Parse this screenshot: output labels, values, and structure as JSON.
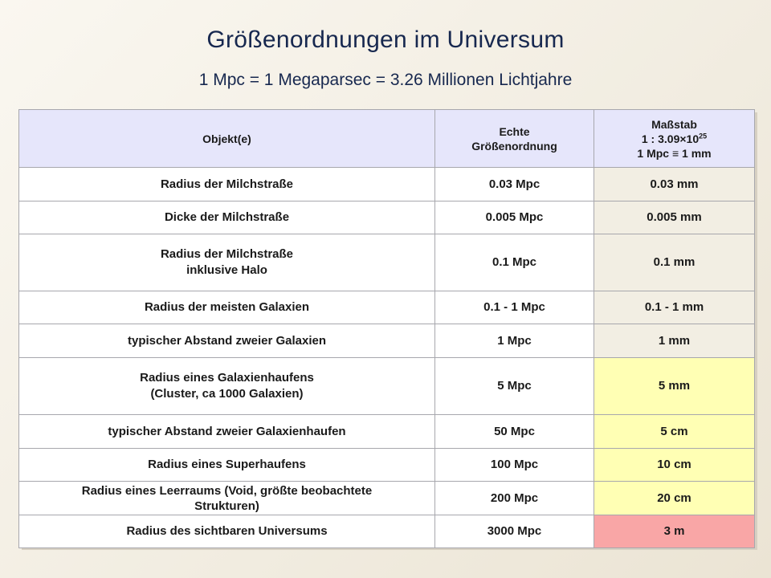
{
  "title": "Größenordnungen im Universum",
  "subtitle": "1 Mpc = 1 Megaparsec = 3.26 Millionen Lichtjahre",
  "table": {
    "headers": {
      "object": "Objekt(e)",
      "size_line1": "Echte",
      "size_line2": "Größenordnung",
      "scale_line1": "Maßstab",
      "scale_line2_prefix": "1 : 3.09×10",
      "scale_line2_exp": "25",
      "scale_line3": "1 Mpc ≡ 1 mm"
    },
    "rows": [
      {
        "object": "Radius der Milchstraße",
        "size": "0.03 Mpc",
        "scale": "0.03 mm"
      },
      {
        "object": "Dicke der Milchstraße",
        "size": "0.005 Mpc",
        "scale": "0.005 mm"
      },
      {
        "object": "Radius der Milchstraße",
        "object2": "inklusive Halo",
        "size": "0.1 Mpc",
        "scale": "0.1 mm"
      },
      {
        "object": "Radius der meisten Galaxien",
        "size": "0.1 - 1 Mpc",
        "scale": "0.1 - 1 mm"
      },
      {
        "object": "typischer Abstand zweier Galaxien",
        "size": "1 Mpc",
        "scale": "1 mm"
      },
      {
        "object": "Radius eines Galaxienhaufens",
        "object2": "(Cluster, ca 1000 Galaxien)",
        "size": "5 Mpc",
        "scale": "5 mm"
      },
      {
        "object": "typischer Abstand zweier Galaxienhaufen",
        "size": "50 Mpc",
        "scale": "5 cm"
      },
      {
        "object": "Radius eines Superhaufens",
        "size": "100 Mpc",
        "scale": "10 cm"
      },
      {
        "object": "Radius eines Leerraums (Void, größte beobachtete",
        "object2": "Strukturen)",
        "size": "200 Mpc",
        "scale": "20 cm"
      },
      {
        "object": "Radius des sichtbaren Universums",
        "size": "3000 Mpc",
        "scale": "3 m"
      }
    ]
  },
  "colors": {
    "highlight_yellow": "#ffffb4",
    "highlight_red": "#f9a6a6",
    "header_bg": "#e6e6fb"
  }
}
